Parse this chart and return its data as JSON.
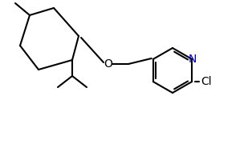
{
  "background_color": "#ffffff",
  "line_color": "#000000",
  "atom_colors": {
    "N": "#0000cc",
    "O": "#000000",
    "Cl": "#000000"
  },
  "figsize": [
    3.14,
    1.8
  ],
  "dpi": 100
}
